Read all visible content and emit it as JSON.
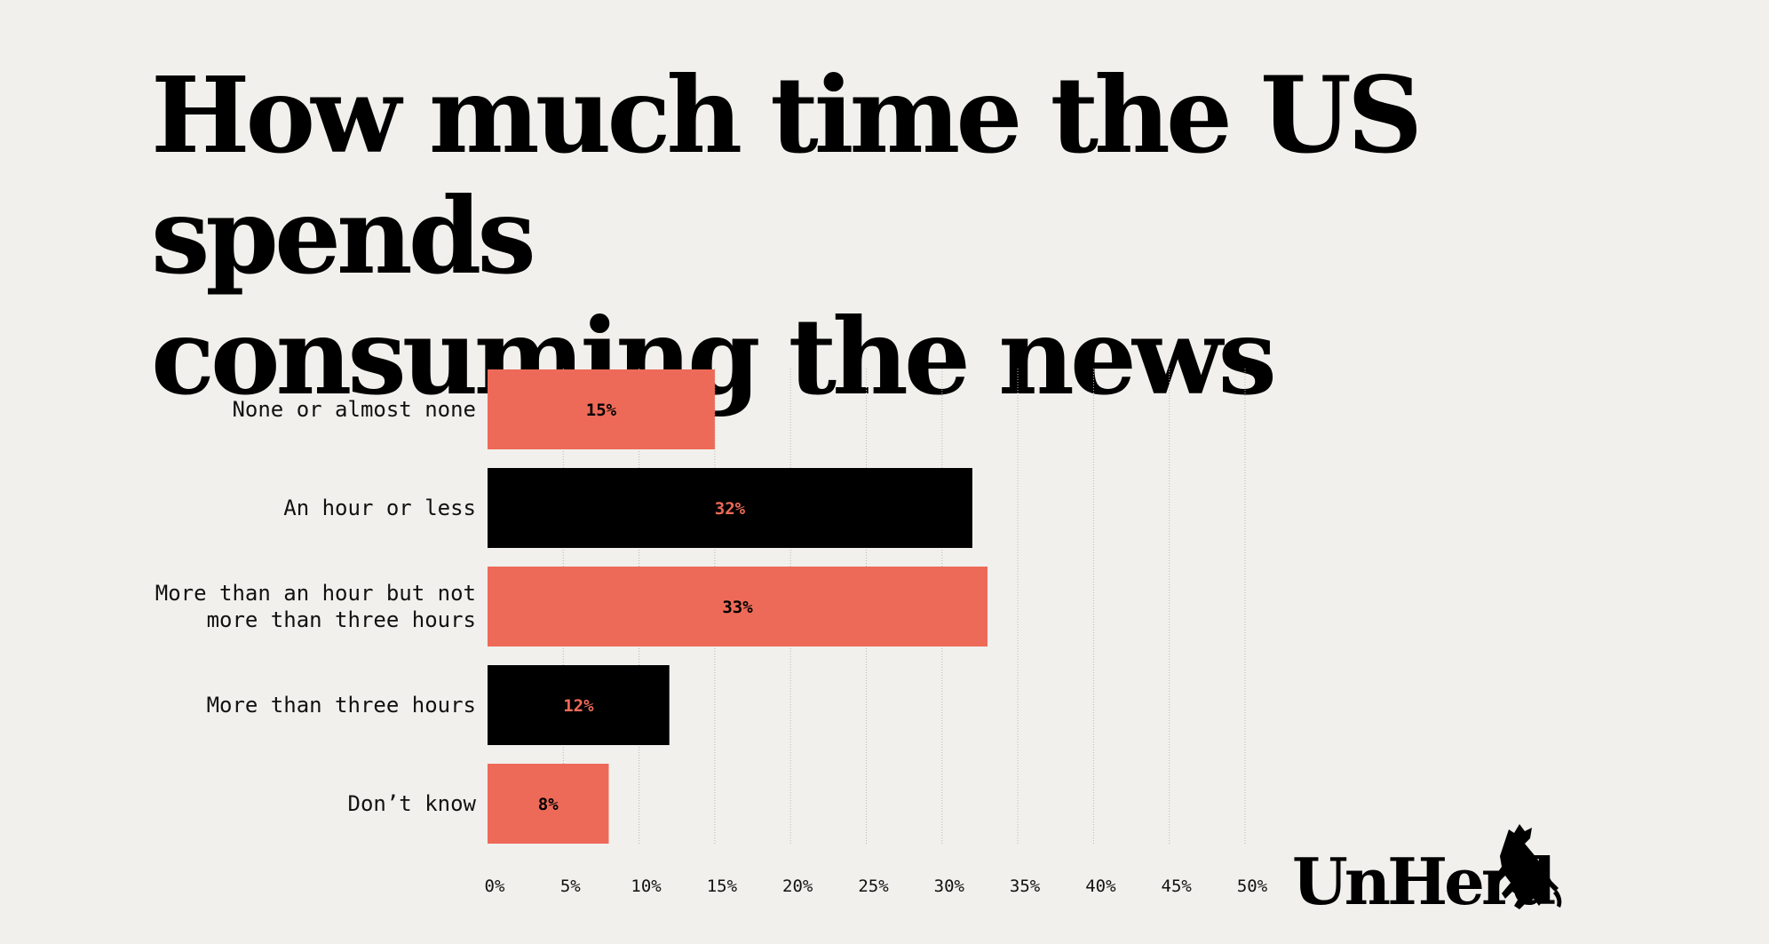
{
  "chart_data": {
    "type": "bar",
    "orientation": "horizontal",
    "title": "How much time the US spends\nconsuming the news",
    "categories": [
      "None or almost none",
      "An hour or less",
      "More than an hour but not\nmore than three hours",
      "More than three hours",
      "Don’t know"
    ],
    "values": [
      15,
      32,
      33,
      12,
      8
    ],
    "value_labels": [
      "15%",
      "32%",
      "33%",
      "12%",
      "8%"
    ],
    "xlim": [
      0,
      50
    ],
    "x_ticks": [
      0,
      5,
      10,
      15,
      20,
      25,
      30,
      35,
      40,
      45,
      50
    ],
    "x_tick_labels": [
      "0%",
      "5%",
      "10%",
      "15%",
      "20%",
      "25%",
      "30%",
      "35%",
      "40%",
      "45%",
      "50%"
    ],
    "grid": true,
    "xlabel": "",
    "ylabel": "",
    "colors": {
      "coral": "#ee6a58",
      "black": "#000000",
      "grid": "#b9b7b2",
      "background": "#f1f0ec"
    },
    "bar_colors": [
      "coral",
      "black",
      "coral",
      "black",
      "coral"
    ]
  },
  "brand": {
    "logo_text": "UnHerd"
  }
}
